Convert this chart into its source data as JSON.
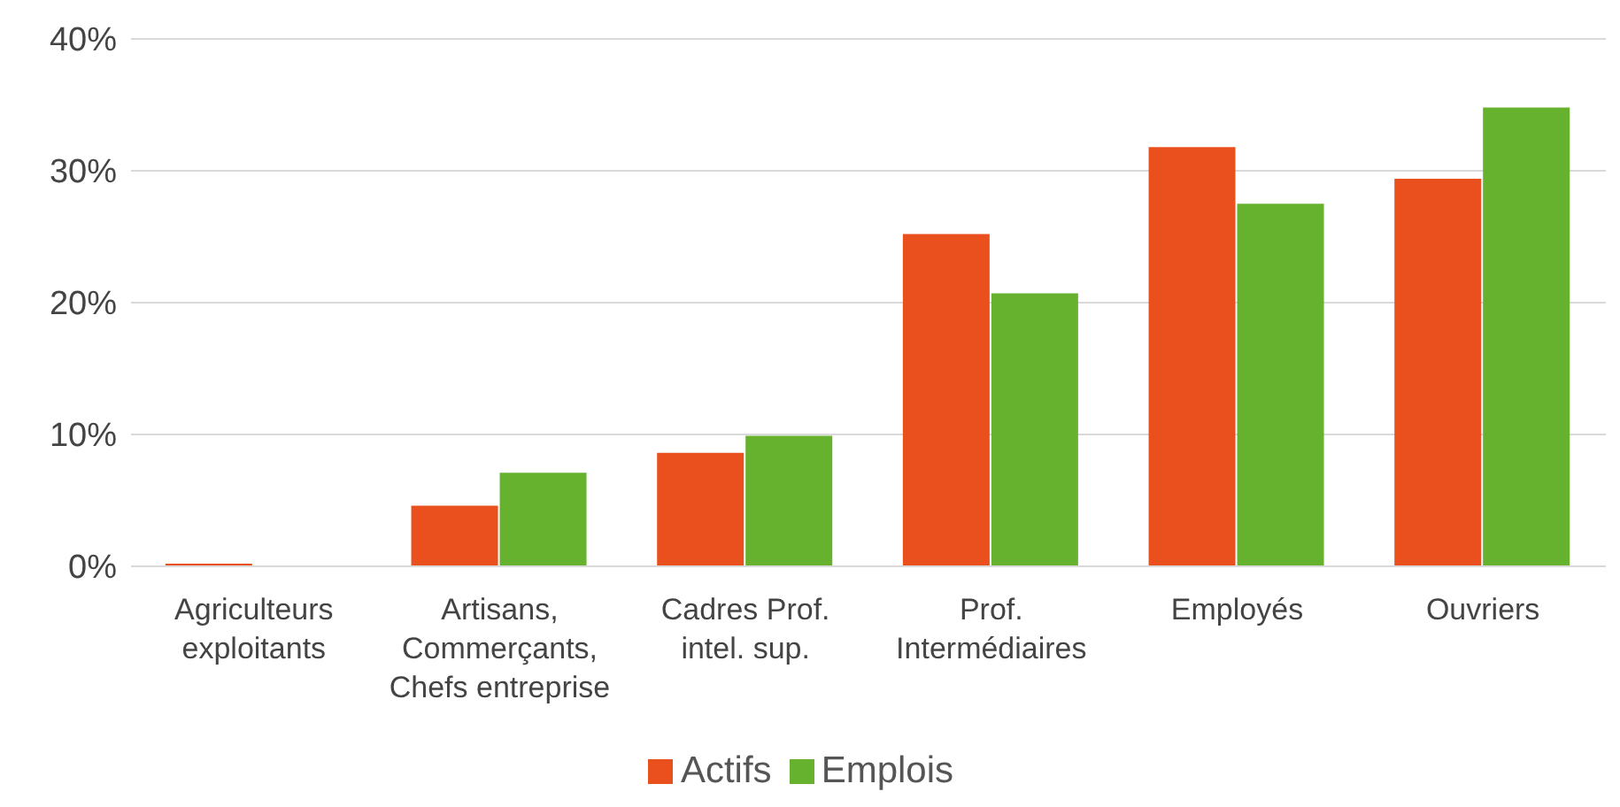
{
  "chart_data": {
    "type": "bar",
    "categories": [
      "Agriculteurs\nexploitants",
      "Artisans,\nCommerçants,\nChefs entreprise",
      "Cadres Prof.\nintel. sup.",
      "Prof.\nIntermédiaires",
      "Employés",
      "Ouvriers"
    ],
    "series": [
      {
        "name": "Actifs",
        "color": "#e9501e",
        "values": [
          0.2,
          4.6,
          8.6,
          25.2,
          31.8,
          29.4
        ]
      },
      {
        "name": "Emplois",
        "color": "#66b22e",
        "values": [
          0,
          7.1,
          9.9,
          20.7,
          27.5,
          34.8
        ]
      }
    ],
    "ylim": [
      0,
      40
    ],
    "yticks": [
      {
        "value": 0,
        "label": "0%"
      },
      {
        "value": 10,
        "label": "10%"
      },
      {
        "value": 20,
        "label": "20%"
      },
      {
        "value": 30,
        "label": "30%"
      },
      {
        "value": 40,
        "label": "40%"
      }
    ],
    "grid": "y",
    "legend": "bottom"
  }
}
